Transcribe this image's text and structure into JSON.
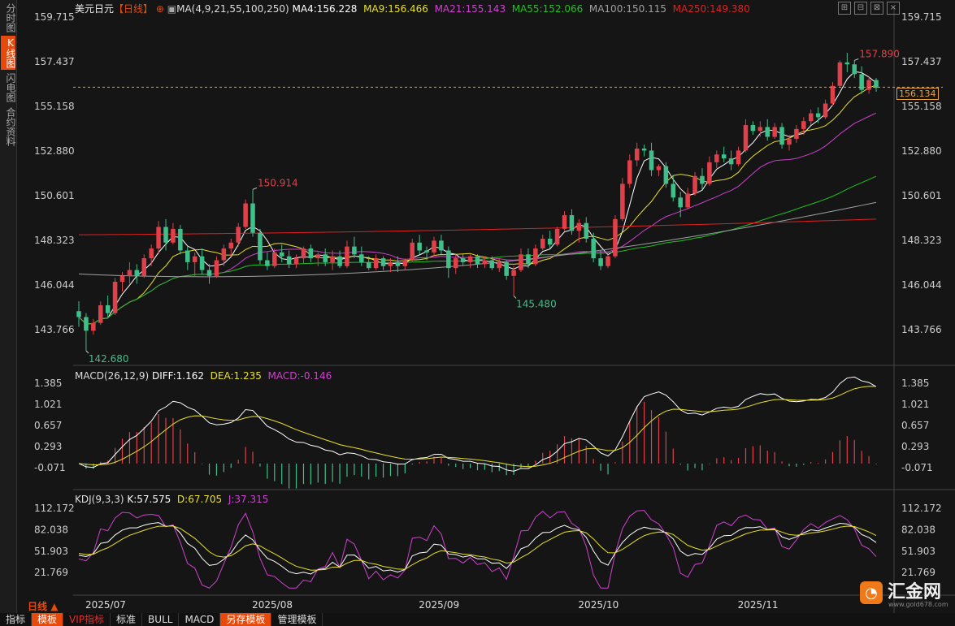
{
  "sidebar": {
    "items": [
      {
        "label": "分时图",
        "active": false
      },
      {
        "label": "K线图",
        "active": true
      },
      {
        "label": "闪电图",
        "active": false
      },
      {
        "label": "合约资料",
        "active": false
      }
    ]
  },
  "header": {
    "symbol": "美元日元",
    "period": "【日线】",
    "ma_list": "MA(4,9,21,55,100,250)",
    "ma4": "MA4:156.228",
    "ma9": "MA9:156.466",
    "ma21": "MA21:155.143",
    "ma55": "MA55:152.066",
    "ma100": "MA100:150.115",
    "ma250": "MA250:149.380"
  },
  "macd_header": {
    "name": "MACD(26,12,9)",
    "diff": "DIFF:1.162",
    "dea": "DEA:1.235",
    "macd": "MACD:-0.146"
  },
  "kdj_header": {
    "name": "KDJ(9,3,3)",
    "k": "K:57.575",
    "d": "D:67.705",
    "j": "J:37.315"
  },
  "current_price": "156.134",
  "period_label": "日线",
  "bottom_bar": [
    "指标",
    "模板",
    "VIP指标",
    "标准",
    "BULL",
    "MACD",
    "另存模板",
    "管理模板"
  ],
  "logo": {
    "name": "汇金网",
    "url": "www.gold678.com"
  },
  "colors": {
    "up": "#e0404a",
    "down": "#3fbf8a",
    "ma4": "#ffffff",
    "ma9": "#e8e020",
    "ma21": "#d040d0",
    "ma55": "#20c020",
    "ma100": "#a0a0a0",
    "ma250": "#e02020",
    "accent": "#e84a0c"
  },
  "chart_data": [
    {
      "type": "candlestick",
      "title": "美元日元 日线",
      "y_ticks": [
        "159.715",
        "157.437",
        "155.158",
        "152.880",
        "150.601",
        "148.323",
        "146.044",
        "143.766"
      ],
      "x_labels": [
        "2025/07",
        "2025/08",
        "2025/09",
        "2025/10",
        "2025/11"
      ],
      "annotations": [
        {
          "label": "157.890",
          "kind": "high"
        },
        {
          "label": "150.914",
          "kind": "high"
        },
        {
          "label": "145.480",
          "kind": "low"
        },
        {
          "label": "142.680",
          "kind": "low"
        }
      ],
      "ohlc": [
        [
          144.7,
          145.2,
          143.9,
          144.4
        ],
        [
          144.4,
          144.6,
          142.68,
          143.7
        ],
        [
          143.7,
          144.3,
          143.5,
          144.1
        ],
        [
          144.1,
          145.2,
          144.0,
          145.0
        ],
        [
          145.0,
          145.5,
          144.4,
          144.6
        ],
        [
          144.6,
          146.4,
          144.5,
          146.2
        ],
        [
          146.2,
          146.7,
          145.7,
          146.5
        ],
        [
          146.5,
          147.2,
          146.1,
          146.8
        ],
        [
          146.8,
          147.1,
          146.1,
          146.5
        ],
        [
          146.5,
          147.6,
          146.4,
          147.4
        ],
        [
          147.4,
          148.1,
          147.0,
          147.9
        ],
        [
          147.9,
          149.3,
          147.6,
          149.0
        ],
        [
          149.0,
          149.4,
          147.8,
          148.2
        ],
        [
          148.2,
          149.2,
          148.1,
          148.9
        ],
        [
          148.9,
          149.1,
          147.6,
          147.8
        ],
        [
          147.8,
          148.0,
          146.8,
          147.2
        ],
        [
          147.2,
          147.7,
          146.5,
          147.5
        ],
        [
          147.5,
          147.9,
          146.6,
          146.8
        ],
        [
          146.8,
          147.1,
          146.1,
          146.5
        ],
        [
          146.5,
          147.5,
          146.4,
          147.3
        ],
        [
          147.3,
          148.1,
          147.0,
          147.9
        ],
        [
          147.9,
          148.4,
          147.5,
          148.2
        ],
        [
          148.2,
          149.2,
          148.0,
          149.0
        ],
        [
          149.0,
          150.4,
          148.9,
          150.2
        ],
        [
          150.2,
          150.914,
          148.5,
          148.7
        ],
        [
          148.7,
          148.9,
          147.1,
          147.3
        ],
        [
          147.3,
          147.7,
          146.8,
          147.0
        ],
        [
          147.0,
          147.9,
          146.9,
          147.7
        ],
        [
          147.7,
          148.1,
          147.2,
          147.5
        ],
        [
          147.5,
          147.8,
          146.9,
          147.1
        ],
        [
          147.1,
          147.6,
          146.9,
          147.4
        ],
        [
          147.4,
          148.0,
          147.1,
          147.9
        ],
        [
          147.9,
          148.1,
          147.2,
          147.4
        ],
        [
          147.4,
          147.7,
          147.0,
          147.6
        ],
        [
          147.6,
          147.9,
          147.0,
          147.2
        ],
        [
          147.2,
          147.8,
          146.8,
          147.5
        ],
        [
          147.5,
          147.8,
          146.9,
          147.0
        ],
        [
          147.0,
          148.3,
          146.9,
          148.0
        ],
        [
          148.0,
          148.5,
          147.4,
          147.6
        ],
        [
          147.6,
          148.0,
          147.0,
          147.2
        ],
        [
          147.2,
          147.5,
          146.8,
          146.9
        ],
        [
          146.9,
          147.6,
          146.8,
          147.4
        ],
        [
          147.4,
          147.5,
          146.8,
          147.0
        ],
        [
          147.0,
          147.4,
          146.7,
          147.2
        ],
        [
          147.2,
          147.5,
          146.7,
          147.0
        ],
        [
          147.0,
          147.4,
          146.8,
          147.3
        ],
        [
          147.3,
          148.4,
          147.2,
          148.2
        ],
        [
          148.2,
          148.6,
          147.6,
          147.8
        ],
        [
          147.8,
          148.0,
          147.3,
          147.7
        ],
        [
          147.7,
          148.5,
          147.5,
          148.3
        ],
        [
          148.3,
          148.6,
          147.6,
          147.8
        ],
        [
          147.8,
          148.0,
          146.4,
          146.9
        ],
        [
          146.9,
          147.6,
          146.6,
          147.4
        ],
        [
          147.4,
          147.6,
          147.0,
          147.2
        ],
        [
          147.2,
          147.6,
          146.9,
          147.5
        ],
        [
          147.5,
          147.6,
          146.9,
          147.1
        ],
        [
          147.1,
          147.5,
          146.9,
          147.3
        ],
        [
          147.3,
          147.5,
          146.8,
          146.9
        ],
        [
          146.9,
          147.4,
          146.7,
          147.2
        ],
        [
          147.2,
          147.3,
          146.3,
          146.5
        ],
        [
          146.5,
          147.0,
          145.48,
          146.8
        ],
        [
          146.8,
          147.9,
          146.7,
          147.6
        ],
        [
          147.6,
          147.9,
          146.9,
          147.1
        ],
        [
          147.1,
          148.1,
          147.0,
          147.9
        ],
        [
          147.9,
          148.6,
          147.8,
          148.4
        ],
        [
          148.4,
          148.8,
          147.9,
          148.1
        ],
        [
          148.1,
          149.0,
          148.0,
          148.9
        ],
        [
          148.9,
          149.8,
          148.8,
          149.6
        ],
        [
          149.6,
          149.9,
          148.6,
          148.8
        ],
        [
          148.8,
          149.4,
          148.2,
          149.2
        ],
        [
          149.2,
          149.5,
          148.2,
          148.4
        ],
        [
          148.4,
          148.7,
          147.2,
          147.4
        ],
        [
          147.4,
          147.8,
          146.8,
          147.0
        ],
        [
          147.0,
          147.6,
          146.9,
          147.5
        ],
        [
          147.5,
          149.6,
          147.4,
          149.4
        ],
        [
          149.4,
          151.5,
          149.3,
          151.2
        ],
        [
          151.2,
          152.7,
          151.0,
          152.4
        ],
        [
          152.4,
          153.3,
          152.1,
          153.0
        ],
        [
          153.0,
          153.2,
          152.6,
          152.9
        ],
        [
          152.9,
          153.3,
          151.6,
          151.9
        ],
        [
          151.9,
          152.2,
          151.6,
          152.1
        ],
        [
          152.1,
          152.3,
          151.0,
          151.2
        ],
        [
          151.2,
          151.6,
          150.3,
          150.5
        ],
        [
          150.5,
          150.8,
          149.5,
          150.0
        ],
        [
          150.0,
          151.0,
          149.9,
          150.7
        ],
        [
          150.7,
          151.8,
          150.6,
          151.6
        ],
        [
          151.6,
          152.0,
          150.9,
          151.2
        ],
        [
          151.2,
          152.6,
          151.1,
          152.3
        ],
        [
          152.3,
          152.9,
          152.0,
          152.7
        ],
        [
          152.7,
          153.1,
          152.3,
          152.5
        ],
        [
          152.5,
          152.9,
          151.9,
          152.2
        ],
        [
          152.2,
          153.1,
          152.1,
          152.9
        ],
        [
          152.9,
          154.5,
          152.8,
          154.2
        ],
        [
          154.2,
          154.4,
          153.7,
          153.9
        ],
        [
          153.9,
          154.4,
          153.6,
          154.1
        ],
        [
          154.1,
          154.5,
          153.4,
          153.6
        ],
        [
          153.6,
          154.3,
          153.5,
          154.1
        ],
        [
          154.1,
          154.3,
          153.0,
          153.2
        ],
        [
          153.2,
          153.7,
          152.9,
          153.5
        ],
        [
          153.5,
          154.2,
          153.3,
          154.0
        ],
        [
          154.0,
          154.6,
          153.7,
          154.4
        ],
        [
          154.4,
          155.0,
          154.2,
          154.8
        ],
        [
          154.8,
          155.1,
          154.3,
          154.6
        ],
        [
          154.6,
          155.5,
          154.5,
          155.3
        ],
        [
          155.3,
          156.4,
          155.2,
          156.2
        ],
        [
          156.2,
          157.5,
          156.1,
          157.4
        ],
        [
          157.4,
          157.89,
          156.9,
          157.3
        ],
        [
          157.3,
          157.5,
          156.6,
          156.8
        ],
        [
          156.8,
          157.2,
          155.8,
          156.0
        ],
        [
          156.0,
          156.7,
          155.8,
          156.5
        ],
        [
          156.5,
          156.6,
          155.9,
          156.1
        ]
      ]
    },
    {
      "type": "macd",
      "title": "MACD(26,12,9)",
      "y_ticks": [
        "1.385",
        "1.021",
        "0.657",
        "0.293",
        "-0.071"
      ],
      "diff": 1.162,
      "dea": 1.235,
      "macd": -0.146
    },
    {
      "type": "kdj",
      "title": "KDJ(9,3,3)",
      "y_ticks": [
        "112.172",
        "82.038",
        "51.903",
        "21.769"
      ],
      "k": 57.575,
      "d": 67.705,
      "j": 37.315
    }
  ]
}
